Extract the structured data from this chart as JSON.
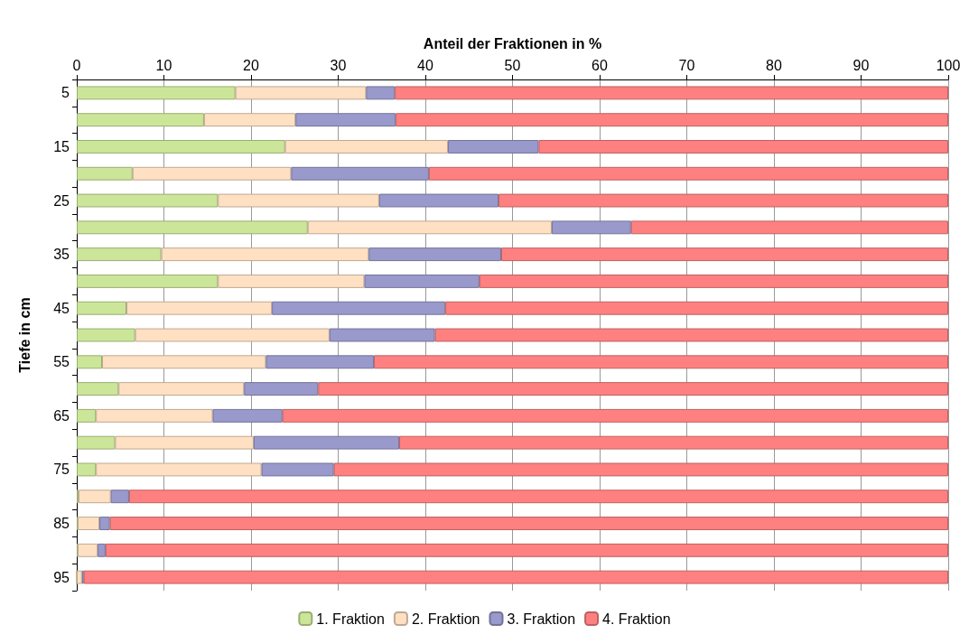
{
  "chart_data": {
    "type": "bar",
    "orientation": "horizontal",
    "stacked": true,
    "xlabel": "Anteil der Fraktionen in %",
    "ylabel": "Tiefe in cm",
    "categories": [
      "5",
      null,
      "15",
      null,
      "25",
      null,
      "35",
      null,
      "45",
      null,
      "55",
      null,
      "65",
      null,
      "75",
      null,
      "85",
      null,
      "95"
    ],
    "series": [
      {
        "name": "1. Fraktion",
        "color": "#cce699",
        "values": [
          18.2,
          14.6,
          23.9,
          6.4,
          16.2,
          26.5,
          9.7,
          16.2,
          5.7,
          6.7,
          2.9,
          4.8,
          2.2,
          4.4,
          2.2,
          0.2,
          0.1,
          0.1,
          0
        ]
      },
      {
        "name": "2. Fraktion",
        "color": "#ffe0c2",
        "values": [
          15.0,
          10.5,
          18.7,
          18.2,
          18.5,
          28.0,
          23.8,
          16.8,
          16.7,
          22.3,
          18.8,
          14.4,
          13.4,
          15.9,
          19.0,
          3.7,
          2.5,
          2.3,
          0.6
        ]
      },
      {
        "name": "3. Fraktion",
        "color": "#9999cc",
        "values": [
          3.3,
          11.5,
          10.4,
          15.8,
          13.7,
          9.1,
          15.2,
          13.2,
          19.9,
          12.1,
          12.4,
          8.5,
          8.0,
          16.7,
          8.3,
          2.1,
          1.2,
          0.9,
          0.2
        ]
      },
      {
        "name": "4. Fraktion",
        "color": "#ff8080",
        "values": [
          63.5,
          63.4,
          47.0,
          59.6,
          51.6,
          36.4,
          51.3,
          53.8,
          57.7,
          58.9,
          65.9,
          72.3,
          76.4,
          63.0,
          70.5,
          94.0,
          96.2,
          96.7,
          99.2
        ]
      }
    ],
    "xlim": [
      0,
      100
    ],
    "xticks": [
      0,
      10,
      20,
      30,
      40,
      50,
      60,
      70,
      80,
      90,
      100
    ],
    "grid": "x",
    "legend": "bottom"
  }
}
